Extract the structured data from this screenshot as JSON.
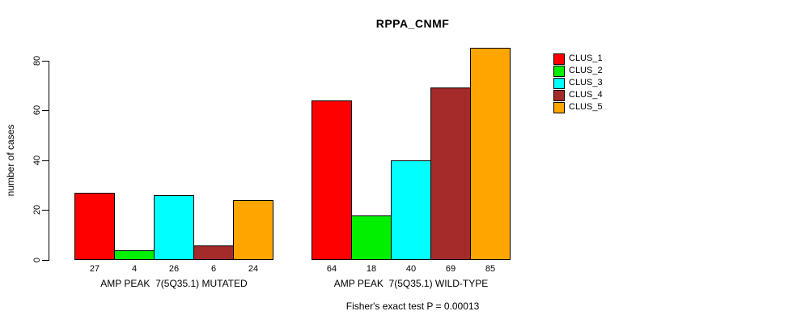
{
  "title": "RPPA_CNMF",
  "chart_data": {
    "type": "bar",
    "title": "RPPA_CNMF",
    "xlabel": "",
    "ylabel": "number of cases",
    "ylim": [
      0,
      85
    ],
    "yticks": [
      0,
      20,
      40,
      60,
      80
    ],
    "grid": false,
    "legend_position": "right",
    "bar_value_labels": true,
    "categories": [
      "AMP PEAK  7(5Q35.1) MUTATED",
      "AMP PEAK  7(5Q35.1) WILD-TYPE"
    ],
    "series": [
      {
        "name": "CLUS_1",
        "color": "#FF0000",
        "values": [
          27,
          64
        ]
      },
      {
        "name": "CLUS_2",
        "color": "#00F000",
        "values": [
          4,
          18
        ]
      },
      {
        "name": "CLUS_3",
        "color": "#00FFFF",
        "values": [
          26,
          40
        ]
      },
      {
        "name": "CLUS_4",
        "color": "#A52A2A",
        "values": [
          6,
          69
        ]
      },
      {
        "name": "CLUS_5",
        "color": "#FFA500",
        "values": [
          24,
          85
        ]
      }
    ],
    "annotation": "Fisher's exact test P = 0.00013"
  }
}
